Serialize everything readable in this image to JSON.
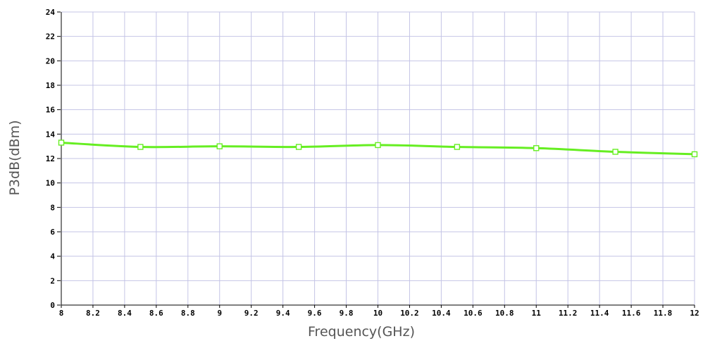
{
  "chart_data": {
    "type": "line",
    "title": "",
    "xlabel": "Frequency(GHz)",
    "ylabel": "P3dB(dBm)",
    "xlim": [
      8,
      12
    ],
    "ylim": [
      0,
      24
    ],
    "xticks": [
      "8",
      "8.2",
      "8.4",
      "8.6",
      "8.8",
      "9",
      "9.2",
      "9.4",
      "9.6",
      "9.8",
      "10",
      "10.2",
      "10.4",
      "10.6",
      "10.8",
      "11",
      "11.2",
      "11.4",
      "11.6",
      "11.8",
      "12"
    ],
    "yticks": [
      "0",
      "2",
      "4",
      "6",
      "8",
      "10",
      "12",
      "14",
      "16",
      "18",
      "20",
      "22",
      "24"
    ],
    "grid": true,
    "series": [
      {
        "color": "#66ee22",
        "marker": "square",
        "x": [
          8,
          8.5,
          9,
          9.5,
          10,
          10.5,
          11,
          11.5,
          12
        ],
        "y": [
          13.3,
          12.95,
          13.0,
          12.95,
          13.1,
          12.95,
          12.85,
          12.55,
          12.35
        ]
      }
    ]
  }
}
